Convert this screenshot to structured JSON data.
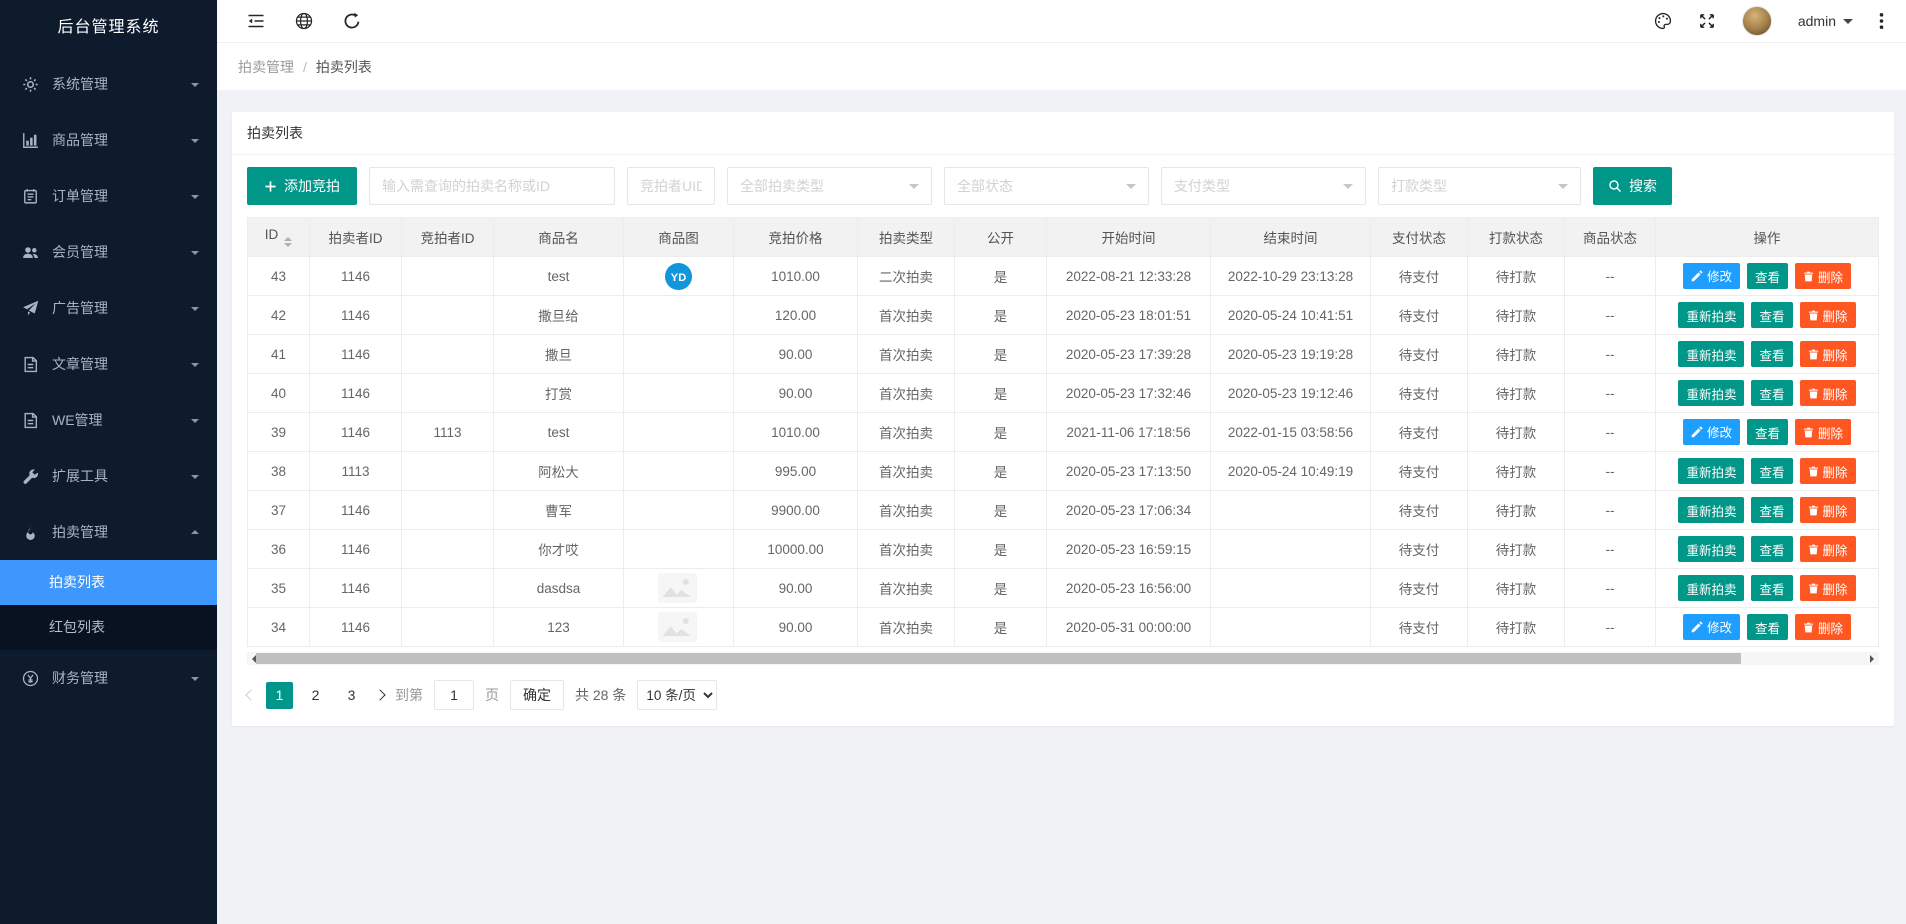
{
  "app": {
    "title": "后台管理系统"
  },
  "sidebar": {
    "title": "后台管理系统",
    "items": [
      {
        "key": "system",
        "icon": "gear-icon",
        "label": "系统管理"
      },
      {
        "key": "goods",
        "icon": "chart-icon",
        "label": "商品管理"
      },
      {
        "key": "orders",
        "icon": "order-icon",
        "label": "订单管理"
      },
      {
        "key": "members",
        "icon": "users-icon",
        "label": "会员管理"
      },
      {
        "key": "ads",
        "icon": "ad-icon",
        "label": "广告管理"
      },
      {
        "key": "articles",
        "icon": "article-icon",
        "label": "文章管理"
      },
      {
        "key": "we",
        "icon": "file-icon",
        "label": "WE管理"
      },
      {
        "key": "tools",
        "icon": "wrench-icon",
        "label": "扩展工具"
      },
      {
        "key": "auction",
        "icon": "fire-icon",
        "label": "拍卖管理",
        "expanded": true,
        "children": [
          {
            "key": "auction-list",
            "label": "拍卖列表",
            "active": true
          },
          {
            "key": "redpacket-list",
            "label": "红包列表"
          }
        ]
      },
      {
        "key": "finance",
        "icon": "yen-icon",
        "label": "财务管理"
      }
    ]
  },
  "topbar": {
    "user": "admin"
  },
  "breadcrumb": {
    "parent": "拍卖管理",
    "sep": "/",
    "current": "拍卖列表"
  },
  "card": {
    "title": "拍卖列表"
  },
  "toolbar": {
    "add_label": "添加竞拍",
    "keyword_placeholder": "输入需查询的拍卖名称或ID",
    "uid_placeholder": "竞拍者UID",
    "selects": [
      "全部拍卖类型",
      "全部状态",
      "支付类型",
      "打款类型"
    ],
    "search_label": "搜索"
  },
  "table": {
    "headers": [
      "ID",
      "拍卖者ID",
      "竞拍者ID",
      "商品名",
      "商品图",
      "竞拍价格",
      "拍卖类型",
      "公开",
      "开始时间",
      "结束时间",
      "支付状态",
      "打款状态",
      "商品状态",
      "操作"
    ],
    "rows": [
      {
        "id": "43",
        "auctioneer_id": "1146",
        "bidder_id": "",
        "name": "test",
        "image": "logo",
        "price": "1010.00",
        "auction_type": "二次拍卖",
        "public": "是",
        "start_time": "2022-08-21 12:33:28",
        "end_time": "2022-10-29 23:13:28",
        "pay_status": "待支付",
        "remit_status": "待打款",
        "goods_status": "--",
        "action": "edit"
      },
      {
        "id": "42",
        "auctioneer_id": "1146",
        "bidder_id": "",
        "name": "撒旦给",
        "image": "",
        "price": "120.00",
        "auction_type": "首次拍卖",
        "public": "是",
        "start_time": "2020-05-23 18:01:51",
        "end_time": "2020-05-24 10:41:51",
        "pay_status": "待支付",
        "remit_status": "待打款",
        "goods_status": "--",
        "action": "reauction"
      },
      {
        "id": "41",
        "auctioneer_id": "1146",
        "bidder_id": "",
        "name": "撒旦",
        "image": "",
        "price": "90.00",
        "auction_type": "首次拍卖",
        "public": "是",
        "start_time": "2020-05-23 17:39:28",
        "end_time": "2020-05-23 19:19:28",
        "pay_status": "待支付",
        "remit_status": "待打款",
        "goods_status": "--",
        "action": "reauction"
      },
      {
        "id": "40",
        "auctioneer_id": "1146",
        "bidder_id": "",
        "name": "打赏",
        "image": "",
        "price": "90.00",
        "auction_type": "首次拍卖",
        "public": "是",
        "start_time": "2020-05-23 17:32:46",
        "end_time": "2020-05-23 19:12:46",
        "pay_status": "待支付",
        "remit_status": "待打款",
        "goods_status": "--",
        "action": "reauction"
      },
      {
        "id": "39",
        "auctioneer_id": "1146",
        "bidder_id": "1113",
        "name": "test",
        "image": "",
        "price": "1010.00",
        "auction_type": "首次拍卖",
        "public": "是",
        "start_time": "2021-11-06 17:18:56",
        "end_time": "2022-01-15 03:58:56",
        "pay_status": "待支付",
        "remit_status": "待打款",
        "goods_status": "--",
        "action": "edit"
      },
      {
        "id": "38",
        "auctioneer_id": "1113",
        "bidder_id": "",
        "name": "阿松大",
        "image": "",
        "price": "995.00",
        "auction_type": "首次拍卖",
        "public": "是",
        "start_time": "2020-05-23 17:13:50",
        "end_time": "2020-05-24 10:49:19",
        "pay_status": "待支付",
        "remit_status": "待打款",
        "goods_status": "--",
        "action": "reauction"
      },
      {
        "id": "37",
        "auctioneer_id": "1146",
        "bidder_id": "",
        "name": "曹军",
        "image": "",
        "price": "9900.00",
        "auction_type": "首次拍卖",
        "public": "是",
        "start_time": "2020-05-23 17:06:34",
        "end_time": "",
        "pay_status": "待支付",
        "remit_status": "待打款",
        "goods_status": "--",
        "action": "reauction"
      },
      {
        "id": "36",
        "auctioneer_id": "1146",
        "bidder_id": "",
        "name": "你才哎",
        "image": "",
        "price": "10000.00",
        "auction_type": "首次拍卖",
        "public": "是",
        "start_time": "2020-05-23 16:59:15",
        "end_time": "",
        "pay_status": "待支付",
        "remit_status": "待打款",
        "goods_status": "--",
        "action": "reauction"
      },
      {
        "id": "35",
        "auctioneer_id": "1146",
        "bidder_id": "",
        "name": "dasdsa",
        "image": "placeholder",
        "price": "90.00",
        "auction_type": "首次拍卖",
        "public": "是",
        "start_time": "2020-05-23 16:56:00",
        "end_time": "",
        "pay_status": "待支付",
        "remit_status": "待打款",
        "goods_status": "--",
        "action": "reauction"
      },
      {
        "id": "34",
        "auctioneer_id": "1146",
        "bidder_id": "",
        "name": "123",
        "image": "placeholder",
        "price": "90.00",
        "auction_type": "首次拍卖",
        "public": "是",
        "start_time": "2020-05-31 00:00:00",
        "end_time": "",
        "pay_status": "待支付",
        "remit_status": "待打款",
        "goods_status": "--",
        "action": "edit"
      }
    ]
  },
  "actions": {
    "edit": "修改",
    "reauction": "重新拍卖",
    "view": "查看",
    "delete": "删除"
  },
  "pagination": {
    "pages": [
      "1",
      "2",
      "3"
    ],
    "active": "1",
    "jump_prefix": "到第",
    "jump_value": "1",
    "jump_suffix": "页",
    "confirm_label": "确定",
    "total_label": "共 28 条",
    "per_page": "10 条/页"
  },
  "colors": {
    "teal": "#009688",
    "blue": "#1E9FFF",
    "orange": "#FF5722",
    "sidebar_active": "#3e97fd",
    "sidebar_bg": "#0d1b2d",
    "logo_blue": "#1296db"
  }
}
